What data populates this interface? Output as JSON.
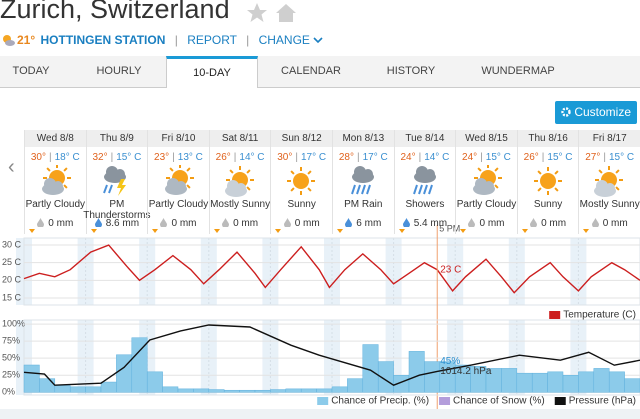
{
  "header": {
    "city": "Zurich, Switzerland",
    "current_temp": "21°",
    "station": "HOTTINGEN STATION",
    "separator": "|",
    "report": "REPORT",
    "change": "CHANGE"
  },
  "tabs": [
    "TODAY",
    "HOURLY",
    "10-DAY",
    "CALENDAR",
    "HISTORY",
    "WUNDERMAP"
  ],
  "active_tab": 2,
  "customize": "Customize",
  "forecast": {
    "temp_separator": "|",
    "days": [
      {
        "date": "Wed 8/8",
        "high": "30°",
        "low": "18° C",
        "condition": "Partly Cloudy",
        "precip": "0 mm"
      },
      {
        "date": "Thu 8/9",
        "high": "32°",
        "low": "15° C",
        "condition": "PM Thunderstorms",
        "precip": "8.6 mm"
      },
      {
        "date": "Fri 8/10",
        "high": "23°",
        "low": "13° C",
        "condition": "Partly Cloudy",
        "precip": "0 mm"
      },
      {
        "date": "Sat 8/11",
        "high": "26°",
        "low": "14° C",
        "condition": "Mostly Sunny",
        "precip": "0 mm"
      },
      {
        "date": "Sun 8/12",
        "high": "30°",
        "low": "17° C",
        "condition": "Sunny",
        "precip": "0 mm"
      },
      {
        "date": "Mon 8/13",
        "high": "28°",
        "low": "17° C",
        "condition": "PM Rain",
        "precip": "6 mm"
      },
      {
        "date": "Tue 8/14",
        "high": "24°",
        "low": "14° C",
        "condition": "Showers",
        "precip": "5.4 mm"
      },
      {
        "date": "Wed 8/15",
        "high": "24°",
        "low": "15° C",
        "condition": "Partly Cloudy",
        "precip": "0 mm"
      },
      {
        "date": "Thu 8/16",
        "high": "26°",
        "low": "15° C",
        "condition": "Sunny",
        "precip": "0 mm"
      },
      {
        "date": "Fri 8/17",
        "high": "27°",
        "low": "15° C",
        "condition": "Mostly Sunny",
        "precip": "0 mm"
      }
    ]
  },
  "chart_data": [
    {
      "type": "line",
      "xlim": [
        0,
        240
      ],
      "ylim": [
        13,
        32
      ],
      "yticks": [
        {
          "value": 30,
          "label": "30 C"
        },
        {
          "value": 25,
          "label": "25 C"
        },
        {
          "value": 20,
          "label": "20 C"
        },
        {
          "value": 15,
          "label": "15 C"
        }
      ],
      "grid": true,
      "legend": "bottom-right",
      "series": [
        {
          "name": "Temperature (C)",
          "color": "#cc1f1f",
          "x": [
            0,
            6,
            12,
            18,
            26,
            33,
            40,
            45,
            51,
            58,
            65,
            70,
            76,
            83,
            90,
            94,
            100,
            108,
            115,
            119,
            125,
            132,
            139,
            144,
            150,
            156,
            161,
            167,
            172,
            180,
            186,
            191,
            197,
            205,
            210,
            216,
            221,
            229,
            234,
            240
          ],
          "values": [
            20.5,
            22,
            21,
            23,
            28,
            30,
            24,
            20,
            23,
            27,
            23,
            19,
            23,
            28,
            22,
            18,
            23,
            29.5,
            23,
            18,
            23,
            27.5,
            23,
            19,
            22,
            25,
            23,
            17,
            21,
            26,
            21,
            16.5,
            21,
            25,
            21,
            17,
            21,
            25,
            23,
            20
          ]
        }
      ],
      "annotations": [
        {
          "text": "5 PM",
          "x": 161
        },
        {
          "text": "23 C",
          "x": 161,
          "y": 23
        }
      ]
    },
    {
      "type": "bar",
      "xlim": [
        0,
        240
      ],
      "ylim": [
        -4,
        106
      ],
      "y2lim": [
        1003.8,
        1036.8
      ],
      "yticks": [
        {
          "value": 100,
          "label": "100%"
        },
        {
          "value": 75,
          "label": "75%"
        },
        {
          "value": 50,
          "label": "50%"
        },
        {
          "value": 25,
          "label": "25%"
        },
        {
          "value": 0,
          "label": "0%"
        }
      ],
      "grid": true,
      "legend": "bottom-right",
      "series": [
        {
          "name": "Chance of Precip. (%)",
          "type": "bar",
          "color": "#8ccbea",
          "bar_width": 6,
          "x": [
            0,
            6,
            12,
            18,
            24,
            30,
            36,
            42,
            48,
            54,
            60,
            66,
            72,
            78,
            84,
            90,
            96,
            102,
            108,
            114,
            120,
            126,
            132,
            138,
            144,
            150,
            156,
            162,
            168,
            174,
            180,
            186,
            192,
            198,
            204,
            210,
            216,
            222,
            228,
            234
          ],
          "values": [
            40,
            20,
            10,
            8,
            8,
            15,
            55,
            80,
            30,
            8,
            5,
            5,
            4,
            3,
            3,
            3,
            4,
            5,
            5,
            5,
            8,
            20,
            70,
            45,
            25,
            60,
            45,
            45,
            40,
            38,
            35,
            35,
            28,
            28,
            30,
            25,
            30,
            35,
            30,
            20
          ]
        },
        {
          "name": "Chance of Snow (%)",
          "type": "bar",
          "color": "#b39ddb",
          "x": [],
          "values": []
        },
        {
          "name": "Pressure (hPa)",
          "type": "line",
          "axis": "y2",
          "color": "#111111",
          "x": [
            0,
            8,
            12,
            30,
            39,
            49,
            61,
            72,
            88,
            104,
            115,
            135,
            144,
            154,
            161,
            174,
            193,
            209,
            220,
            230,
            240
          ],
          "values": [
            1013.8,
            1013,
            1008.1,
            1009,
            1016,
            1028,
            1032,
            1034.6,
            1033.7,
            1025.7,
            1021.3,
            1014.7,
            1008.1,
            1012.5,
            1014.2,
            1016.9,
            1021.3,
            1019.1,
            1022.6,
            1016.9,
            1019.1
          ]
        }
      ],
      "annotations": [
        {
          "text": "45%",
          "x": 161,
          "y": 45
        },
        {
          "text": "1014.2 hPa",
          "x": 161,
          "y": 1014.2,
          "axis": "y2"
        }
      ]
    }
  ]
}
